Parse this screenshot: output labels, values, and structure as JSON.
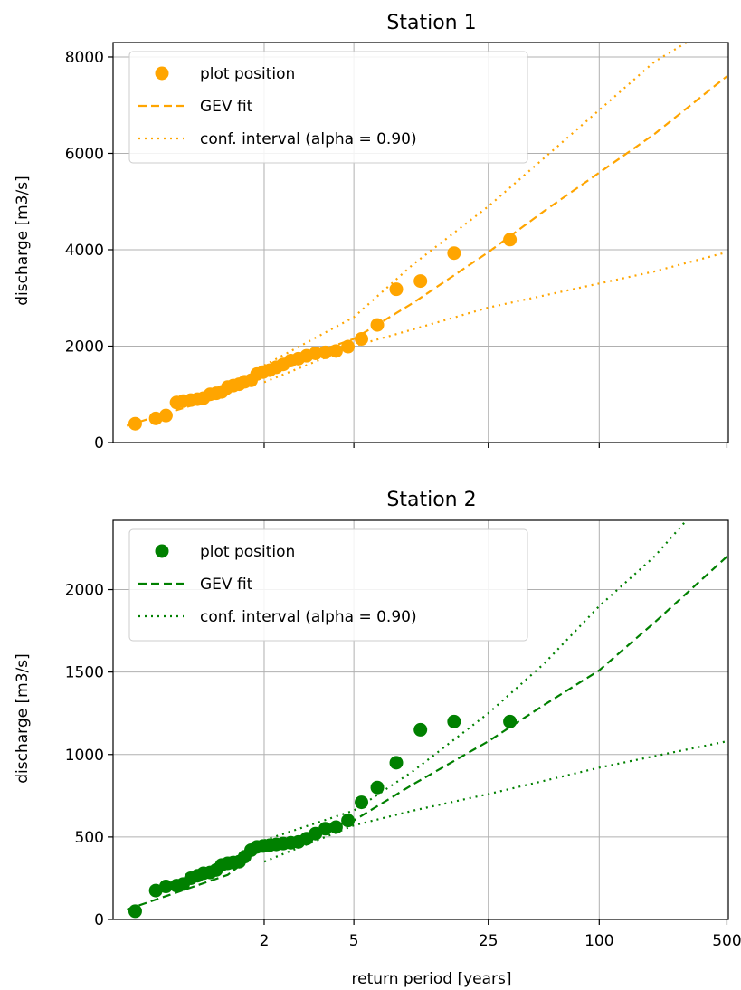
{
  "chart_data": [
    {
      "type": "line",
      "title": "Station 1",
      "xlabel": "",
      "ylabel": "discharge [m3/s]",
      "ylim": [
        0,
        8300
      ],
      "yticks": [
        0,
        2000,
        4000,
        6000,
        8000
      ],
      "x_scale": "gumbel",
      "grid": true,
      "legend_position": "top-left",
      "colors": {
        "series": "#ffa500"
      },
      "legend": [
        {
          "label": "plot position",
          "marker": "dot"
        },
        {
          "label": "GEV fit",
          "marker": "dashed"
        },
        {
          "label": "conf. interval (alpha = 0.90)",
          "marker": "dotted"
        }
      ],
      "plot_positions": {
        "x": [
          1.03,
          1.07,
          1.1,
          1.14,
          1.17,
          1.21,
          1.25,
          1.29,
          1.34,
          1.39,
          1.44,
          1.5,
          1.56,
          1.63,
          1.7,
          1.79,
          1.88,
          1.98,
          2.1,
          2.23,
          2.38,
          2.56,
          2.76,
          3.0,
          3.29,
          3.65,
          4.1,
          4.68,
          5.45,
          6.54,
          8.17,
          10.9,
          16.4,
          32.7
        ],
        "y": [
          390,
          500,
          560,
          830,
          860,
          880,
          900,
          920,
          1000,
          1020,
          1050,
          1150,
          1180,
          1210,
          1260,
          1290,
          1420,
          1460,
          1500,
          1560,
          1620,
          1700,
          1740,
          1800,
          1850,
          1870,
          1900,
          1990,
          2150,
          2440,
          3180,
          3350,
          3930,
          4210
        ]
      },
      "gev_fit": {
        "x": [
          1.02,
          1.5,
          2,
          5,
          10,
          25,
          50,
          100,
          200,
          500
        ],
        "y": [
          350,
          1000,
          1500,
          2150,
          2900,
          3950,
          4800,
          5600,
          6400,
          7600
        ]
      },
      "conf_upper": {
        "x": [
          2,
          5,
          10,
          25,
          50,
          100,
          200,
          300
        ],
        "y": [
          1600,
          2600,
          3700,
          4900,
          5900,
          6900,
          7900,
          8300
        ]
      },
      "conf_lower": {
        "x": [
          2,
          5,
          10,
          25,
          50,
          100,
          200,
          500
        ],
        "y": [
          1250,
          2000,
          2350,
          2800,
          3050,
          3300,
          3550,
          3950
        ]
      }
    },
    {
      "type": "line",
      "title": "Station 2",
      "xlabel": "return period [years]",
      "ylabel": "discharge [m3/s]",
      "ylim": [
        0,
        2420
      ],
      "yticks": [
        0,
        500,
        1000,
        1500,
        2000
      ],
      "xtick_labels": [
        "2",
        "5",
        "25",
        "100",
        "500"
      ],
      "x_scale": "gumbel",
      "grid": true,
      "legend_position": "top-left",
      "colors": {
        "series": "#008000"
      },
      "legend": [
        {
          "label": "plot position",
          "marker": "dot"
        },
        {
          "label": "GEV fit",
          "marker": "dashed"
        },
        {
          "label": "conf. interval (alpha = 0.90)",
          "marker": "dotted"
        }
      ],
      "plot_positions": {
        "x": [
          1.03,
          1.07,
          1.1,
          1.14,
          1.17,
          1.21,
          1.25,
          1.29,
          1.34,
          1.39,
          1.44,
          1.5,
          1.56,
          1.63,
          1.7,
          1.79,
          1.88,
          1.98,
          2.1,
          2.23,
          2.38,
          2.56,
          2.76,
          3.0,
          3.29,
          3.65,
          4.1,
          4.68,
          5.45,
          6.54,
          8.17,
          10.9,
          16.4,
          32.7
        ],
        "y": [
          50,
          175,
          200,
          205,
          215,
          250,
          265,
          280,
          285,
          300,
          330,
          340,
          345,
          350,
          380,
          420,
          440,
          445,
          450,
          455,
          460,
          465,
          470,
          490,
          520,
          550,
          560,
          600,
          710,
          800,
          950,
          1150,
          1200,
          1200
        ]
      },
      "gev_fit": {
        "x": [
          1.02,
          1.5,
          2,
          5,
          10,
          25,
          50,
          100,
          200,
          500
        ],
        "y": [
          60,
          270,
          440,
          600,
          820,
          1080,
          1300,
          1510,
          1800,
          2200
        ]
      },
      "conf_upper": {
        "x": [
          2,
          5,
          10,
          25,
          50,
          100,
          200,
          300
        ],
        "y": [
          480,
          660,
          900,
          1250,
          1550,
          1900,
          2200,
          2420
        ]
      },
      "conf_lower": {
        "x": [
          2,
          5,
          10,
          25,
          50,
          100,
          200,
          500
        ],
        "y": [
          350,
          570,
          660,
          760,
          840,
          920,
          990,
          1080
        ]
      }
    }
  ]
}
